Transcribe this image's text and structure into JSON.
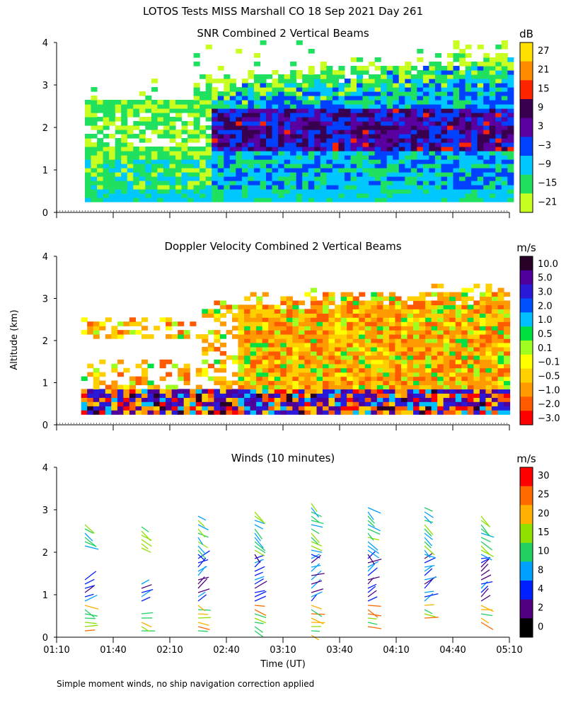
{
  "title": "LOTOS Tests MISS Marshall CO  18 Sep 2021 Day 261",
  "footer_note": "Simple moment winds, no ship navigation correction applied",
  "shared_ylabel": "Altitude (km)",
  "shared_xlabel": "Time (UT)",
  "chart_data": [
    {
      "type": "heatmap",
      "title": "SNR Combined 2 Vertical Beams",
      "ylim": [
        0,
        4
      ],
      "yticks": [
        0,
        1,
        2,
        3,
        4
      ],
      "xlim_minutes": [
        70,
        310
      ],
      "units": "dB",
      "colorbar_labels": [
        "27",
        "21",
        "15",
        "9",
        "3",
        "−3",
        "−9",
        "−15",
        "−21"
      ],
      "colorbar_colors": [
        "#ffe000",
        "#ff8c00",
        "#ff2400",
        "#3a0050",
        "#5a00a0",
        "#0040ff",
        "#00c8ff",
        "#20e060",
        "#c8ff20"
      ],
      "field": "snr"
    },
    {
      "type": "heatmap",
      "title": "Doppler Velocity Combined 2 Vertical Beams",
      "ylim": [
        0,
        4
      ],
      "yticks": [
        0,
        1,
        2,
        3,
        4
      ],
      "xlim_minutes": [
        70,
        310
      ],
      "units": "m/s",
      "colorbar_labels": [
        "10.0",
        "5.0",
        "3.0",
        "2.0",
        "1.0",
        "0.5",
        "0.1",
        "−0.1",
        "−0.5",
        "−1.0",
        "−2.0",
        "−3.0"
      ],
      "colorbar_colors": [
        "#280028",
        "#50009a",
        "#2a1ad8",
        "#0050ff",
        "#00c0ff",
        "#00e040",
        "#a0ff20",
        "#ffff00",
        "#ffd000",
        "#ff9a00",
        "#ff5a00",
        "#ff0000"
      ],
      "field": "doppler"
    },
    {
      "type": "scatter",
      "title": "Winds (10 minutes)",
      "ylim": [
        0,
        4
      ],
      "yticks": [
        0,
        1,
        2,
        3,
        4
      ],
      "xlim_minutes": [
        70,
        310
      ],
      "xtick_labels": [
        "01:10",
        "01:40",
        "02:10",
        "02:40",
        "03:10",
        "03:40",
        "04:10",
        "04:40",
        "05:10"
      ],
      "units": "m/s",
      "colorbar_labels": [
        "30",
        "25",
        "20",
        "15",
        "10",
        "8",
        "4",
        "2",
        "0"
      ],
      "colorbar_colors": [
        "#ff0000",
        "#ff6a00",
        "#ffb000",
        "#90e000",
        "#20d060",
        "#00a0ff",
        "#0020ff",
        "#500080",
        "#000000"
      ],
      "profile_times_minutes": [
        85,
        115,
        145,
        175,
        205,
        235,
        265,
        295
      ],
      "profiles": [
        {
          "t": 85,
          "alts_km": [
            0.15,
            0.25,
            0.35,
            0.45,
            0.55,
            0.65,
            0.75,
            0.85,
            0.95,
            1.05,
            1.15,
            1.25,
            1.35,
            2.15,
            2.25,
            2.35,
            2.45,
            2.55,
            2.65
          ]
        },
        {
          "t": 115,
          "alts_km": [
            0.15,
            0.25,
            0.35,
            0.45,
            0.55,
            0.85,
            0.95,
            1.05,
            1.15,
            1.25,
            2.1,
            2.2,
            2.3,
            2.4,
            2.5,
            2.6
          ]
        },
        {
          "t": 145,
          "alts_km": [
            0.15,
            0.25,
            0.35,
            0.45,
            0.55,
            0.65,
            0.75,
            0.85,
            0.95,
            1.05,
            1.15,
            1.25,
            1.35,
            1.45,
            1.55,
            1.65,
            1.75,
            1.85,
            1.95,
            2.05,
            2.15,
            2.25,
            2.35,
            2.45,
            2.55,
            2.65,
            2.75,
            2.85
          ]
        },
        {
          "t": 175,
          "alts_km": [
            0.15,
            0.25,
            0.35,
            0.45,
            0.55,
            0.65,
            0.75,
            0.85,
            0.95,
            1.05,
            1.15,
            1.25,
            1.35,
            1.45,
            1.55,
            1.65,
            1.75,
            1.85,
            1.95,
            2.05,
            2.15,
            2.25,
            2.35,
            2.45,
            2.55,
            2.65,
            2.75,
            2.85,
            2.95
          ]
        },
        {
          "t": 205,
          "alts_km": [
            0.05,
            0.15,
            0.25,
            0.35,
            0.45,
            0.55,
            0.65,
            0.75,
            0.85,
            0.95,
            1.05,
            1.15,
            1.25,
            1.35,
            1.45,
            1.55,
            1.65,
            1.75,
            1.85,
            1.95,
            2.05,
            2.15,
            2.25,
            2.35,
            2.45,
            2.55,
            2.65,
            2.75,
            2.85,
            2.95,
            3.05,
            3.15
          ]
        },
        {
          "t": 235,
          "alts_km": [
            0.25,
            0.35,
            0.45,
            0.55,
            0.65,
            0.75,
            0.85,
            0.95,
            1.05,
            1.15,
            1.25,
            1.35,
            1.45,
            1.55,
            1.65,
            1.75,
            1.85,
            1.95,
            2.05,
            2.15,
            2.25,
            2.35,
            2.45,
            2.55,
            2.65,
            2.75,
            2.85,
            2.95,
            3.05
          ]
        },
        {
          "t": 265,
          "alts_km": [
            0.45,
            0.55,
            0.65,
            0.75,
            0.85,
            0.95,
            1.05,
            1.15,
            1.25,
            1.35,
            1.45,
            1.55,
            1.65,
            1.75,
            1.85,
            1.95,
            2.05,
            2.15,
            2.25,
            2.35,
            2.45,
            2.55,
            2.65,
            2.75,
            2.85,
            2.95,
            3.05
          ]
        },
        {
          "t": 295,
          "alts_km": [
            0.35,
            0.45,
            0.55,
            0.65,
            0.75,
            0.85,
            0.95,
            1.05,
            1.15,
            1.25,
            1.35,
            1.45,
            1.55,
            1.65,
            1.75,
            1.85,
            1.95,
            2.05,
            2.15,
            2.25,
            2.35,
            2.45,
            2.55,
            2.65,
            2.75,
            2.85
          ]
        }
      ]
    }
  ]
}
